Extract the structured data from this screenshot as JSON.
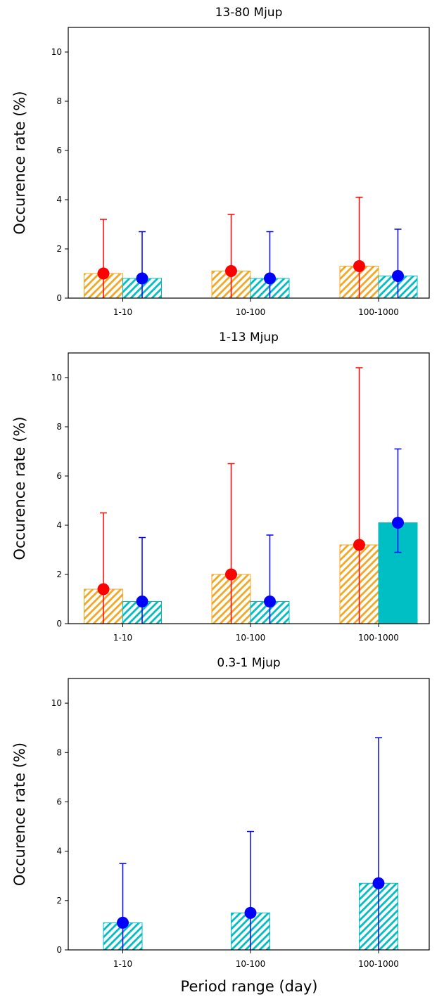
{
  "colors": {
    "orange": "#f5a623",
    "cyan": "#00bfc4",
    "red_marker": "#ff0000",
    "blue_marker": "#0000ff"
  },
  "xlabel": "Period range (day)",
  "chart_data": [
    {
      "type": "bar",
      "title": "13-80 Mjup",
      "ylabel": "Occurence rate (%)",
      "xlabel": "",
      "categories": [
        "1-10",
        "10-100",
        "100-1000"
      ],
      "ylim": [
        0,
        11
      ],
      "yticks": [
        0,
        2,
        4,
        6,
        8,
        10
      ],
      "grid": false,
      "series": [
        {
          "color": "orange",
          "hatched": [
            true,
            true,
            true
          ],
          "values": [
            1.0,
            1.1,
            1.3
          ],
          "err_upper": [
            3.2,
            3.4,
            4.1
          ],
          "err_lower": [
            0,
            0,
            0
          ],
          "marker": "red_marker"
        },
        {
          "color": "cyan",
          "hatched": [
            true,
            true,
            true
          ],
          "values": [
            0.8,
            0.8,
            0.9
          ],
          "err_upper": [
            2.7,
            2.7,
            2.8
          ],
          "err_lower": [
            0,
            0,
            0
          ],
          "marker": "blue_marker"
        }
      ]
    },
    {
      "type": "bar",
      "title": "1-13 Mjup",
      "ylabel": "Occurence rate (%)",
      "xlabel": "",
      "categories": [
        "1-10",
        "10-100",
        "100-1000"
      ],
      "ylim": [
        0,
        11
      ],
      "yticks": [
        0,
        2,
        4,
        6,
        8,
        10
      ],
      "grid": false,
      "series": [
        {
          "color": "orange",
          "hatched": [
            true,
            true,
            true
          ],
          "values": [
            1.4,
            2.0,
            3.2
          ],
          "err_upper": [
            4.5,
            6.5,
            10.4
          ],
          "err_lower": [
            0,
            0,
            0
          ],
          "marker": "red_marker"
        },
        {
          "color": "cyan",
          "hatched": [
            true,
            true,
            false
          ],
          "values": [
            0.9,
            0.9,
            4.1
          ],
          "err_upper": [
            3.5,
            3.6,
            7.1
          ],
          "err_lower": [
            0,
            0,
            2.9
          ],
          "marker": "blue_marker"
        }
      ]
    },
    {
      "type": "bar",
      "title": "0.3-1 Mjup",
      "ylabel": "Occurence rate (%)",
      "xlabel": "Period range (day)",
      "categories": [
        "1-10",
        "10-100",
        "100-1000"
      ],
      "ylim": [
        0,
        11
      ],
      "yticks": [
        0,
        2,
        4,
        6,
        8,
        10
      ],
      "grid": false,
      "series": [
        {
          "color": "cyan",
          "hatched": [
            true,
            true,
            true
          ],
          "values": [
            1.1,
            1.5,
            2.7
          ],
          "err_upper": [
            3.5,
            4.8,
            8.6
          ],
          "err_lower": [
            0,
            0,
            0
          ],
          "marker": "blue_marker"
        }
      ]
    }
  ]
}
